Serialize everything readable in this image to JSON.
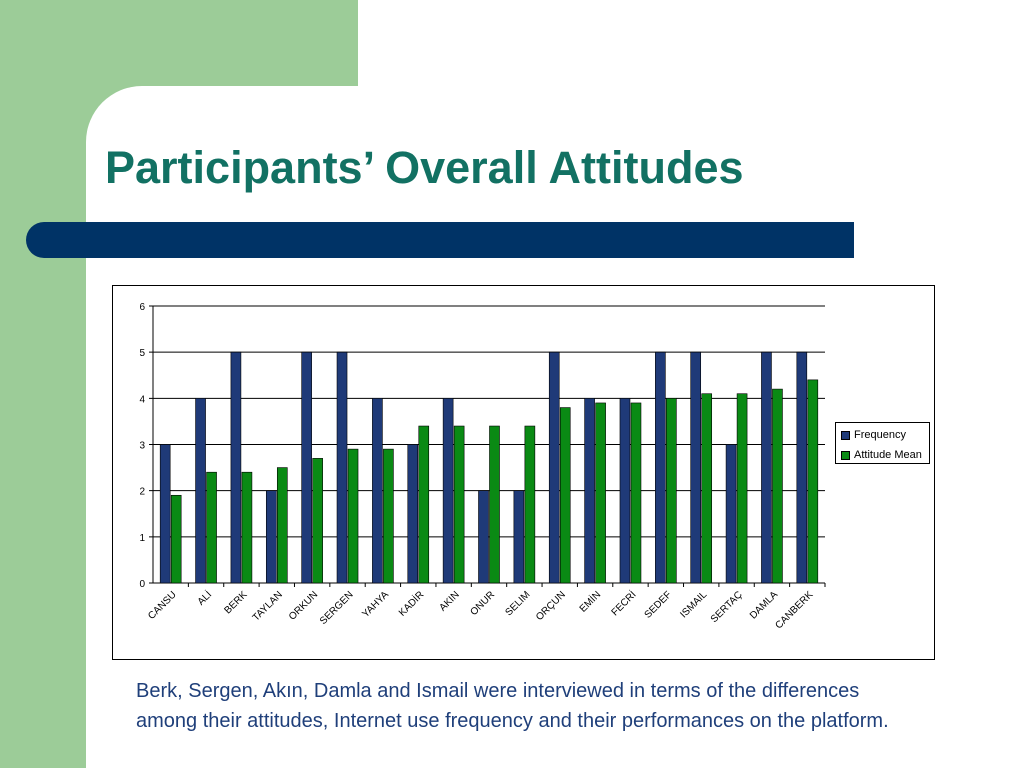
{
  "slide": {
    "title": "Participants’ Overall Attitudes",
    "caption": "Berk, Sergen, Akın, Damla and Ismail were interviewed in terms of the differences among their attitudes, Internet use frequency and their performances on the platform."
  },
  "colors": {
    "title": "#127163",
    "band": "#003366",
    "side_panel": "#9ccc98",
    "frequency": "#1f3a78",
    "attitude_mean": "#0a8a14"
  },
  "chart_data": {
    "type": "bar",
    "categories": [
      "CANSU",
      "ALİ",
      "BERK",
      "TAYLAN",
      "ORKUN",
      "SERGEN",
      "YAHYA",
      "KADİR",
      "AKIN",
      "ONUR",
      "SELIM",
      "ORÇUN",
      "EMİN",
      "FECRİ",
      "SEDEF",
      "ISMAIL",
      "SERTAÇ",
      "DAMLA",
      "CANBERK"
    ],
    "series": [
      {
        "name": "Frequency",
        "color": "#1f3a78",
        "values": [
          3,
          4,
          5,
          2,
          5,
          5,
          4,
          3,
          4,
          2,
          2,
          5,
          4,
          4,
          5,
          5,
          3,
          5,
          5
        ]
      },
      {
        "name": "Attitude Mean",
        "color": "#0a8a14",
        "values": [
          1.9,
          2.4,
          2.4,
          2.5,
          2.7,
          2.9,
          2.9,
          3.4,
          3.4,
          3.4,
          3.4,
          3.8,
          3.9,
          3.9,
          4.0,
          4.1,
          4.1,
          4.2,
          4.4
        ]
      }
    ],
    "ylim": [
      0,
      6
    ],
    "yticks": [
      "0",
      "1",
      "2",
      "3",
      "4",
      "5",
      "6"
    ],
    "grid": true,
    "legend_position": "right"
  }
}
